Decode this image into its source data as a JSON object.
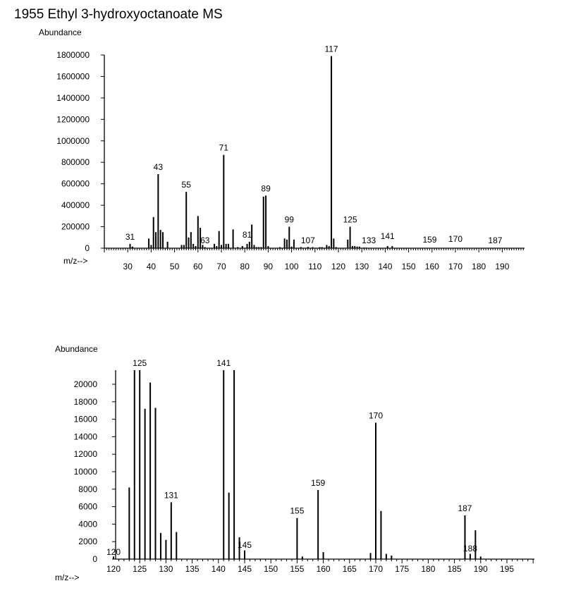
{
  "title": "1955 Ethyl 3-hydroxyoctanoate MS",
  "chart_data": [
    {
      "type": "bar",
      "name": "full-spectrum",
      "ylabel": "Abundance",
      "xlabel": "m/z-->",
      "xlim": [
        20,
        200
      ],
      "ylim": [
        0,
        1800000
      ],
      "x_ticks": [
        30,
        40,
        50,
        60,
        70,
        80,
        90,
        100,
        110,
        120,
        130,
        140,
        150,
        160,
        170,
        180,
        190
      ],
      "y_ticks": [
        0,
        200000,
        400000,
        600000,
        800000,
        1000000,
        1200000,
        1400000,
        1600000,
        1800000
      ],
      "peaks": [
        [
          31,
          40000
        ],
        [
          32,
          15000
        ],
        [
          39,
          90000
        ],
        [
          40,
          30000
        ],
        [
          41,
          290000
        ],
        [
          42,
          150000
        ],
        [
          43,
          690000
        ],
        [
          44,
          170000
        ],
        [
          45,
          150000
        ],
        [
          47,
          60000
        ],
        [
          53,
          30000
        ],
        [
          54,
          30000
        ],
        [
          55,
          525000
        ],
        [
          56,
          100000
        ],
        [
          57,
          150000
        ],
        [
          58,
          40000
        ],
        [
          59,
          20000
        ],
        [
          60,
          300000
        ],
        [
          61,
          190000
        ],
        [
          62,
          30000
        ],
        [
          63,
          10000
        ],
        [
          67,
          40000
        ],
        [
          68,
          20000
        ],
        [
          69,
          160000
        ],
        [
          70,
          30000
        ],
        [
          71,
          870000
        ],
        [
          72,
          40000
        ],
        [
          73,
          40000
        ],
        [
          75,
          175000
        ],
        [
          77,
          10000
        ],
        [
          79,
          20000
        ],
        [
          81,
          40000
        ],
        [
          82,
          60000
        ],
        [
          83,
          220000
        ],
        [
          84,
          30000
        ],
        [
          85,
          10000
        ],
        [
          86,
          10000
        ],
        [
          87,
          10000
        ],
        [
          88,
          480000
        ],
        [
          89,
          490000
        ],
        [
          90,
          20000
        ],
        [
          95,
          10000
        ],
        [
          97,
          90000
        ],
        [
          98,
          80000
        ],
        [
          99,
          200000
        ],
        [
          100,
          15000
        ],
        [
          101,
          80000
        ],
        [
          104,
          10000
        ],
        [
          107,
          12000
        ],
        [
          109,
          10000
        ],
        [
          112,
          10000
        ],
        [
          113,
          10000
        ],
        [
          115,
          30000
        ],
        [
          116,
          20000
        ],
        [
          117,
          1790000
        ],
        [
          118,
          90000
        ],
        [
          119,
          10000
        ],
        [
          124,
          80000
        ],
        [
          125,
          200000
        ],
        [
          126,
          20000
        ],
        [
          127,
          20000
        ],
        [
          128,
          15000
        ],
        [
          129,
          15000
        ],
        [
          131,
          5000
        ],
        [
          132,
          5000
        ],
        [
          141,
          20000
        ],
        [
          143,
          20000
        ]
      ],
      "labels": [
        {
          "mz": 31,
          "text": "31"
        },
        {
          "mz": 43,
          "text": "43"
        },
        {
          "mz": 55,
          "text": "55"
        },
        {
          "mz": 63,
          "text": "63"
        },
        {
          "mz": 71,
          "text": "71"
        },
        {
          "mz": 81,
          "text": "81"
        },
        {
          "mz": 89,
          "text": "89"
        },
        {
          "mz": 99,
          "text": "99"
        },
        {
          "mz": 107,
          "text": "107"
        },
        {
          "mz": 117,
          "text": "117"
        },
        {
          "mz": 125,
          "text": "125"
        },
        {
          "mz": 133,
          "text": "133"
        },
        {
          "mz": 141,
          "text": "141"
        },
        {
          "mz": 159,
          "text": "159"
        },
        {
          "mz": 170,
          "text": "170"
        },
        {
          "mz": 187,
          "text": "187"
        }
      ]
    },
    {
      "type": "bar",
      "name": "zoomed-spectrum",
      "ylabel": "Abundance",
      "xlabel": "m/z-->",
      "xlim": [
        119,
        200
      ],
      "ylim": [
        0,
        22000
      ],
      "x_ticks": [
        120,
        125,
        130,
        135,
        140,
        145,
        150,
        155,
        160,
        165,
        170,
        175,
        180,
        185,
        190,
        195
      ],
      "y_ticks": [
        0,
        2000,
        4000,
        6000,
        8000,
        10000,
        12000,
        14000,
        16000,
        18000,
        20000
      ],
      "peaks": [
        [
          120,
          300
        ],
        [
          123,
          8200
        ],
        [
          124,
          21800
        ],
        [
          125,
          21800
        ],
        [
          126,
          17200
        ],
        [
          127,
          20200
        ],
        [
          128,
          17300
        ],
        [
          129,
          3000
        ],
        [
          130,
          2200
        ],
        [
          131,
          6500
        ],
        [
          132,
          3100
        ],
        [
          141,
          21800
        ],
        [
          142,
          7600
        ],
        [
          143,
          21800
        ],
        [
          144,
          2500
        ],
        [
          145,
          1000
        ],
        [
          155,
          4700
        ],
        [
          156,
          300
        ],
        [
          159,
          7900
        ],
        [
          160,
          800
        ],
        [
          169,
          700
        ],
        [
          170,
          15600
        ],
        [
          171,
          5500
        ],
        [
          172,
          600
        ],
        [
          173,
          400
        ],
        [
          187,
          5000
        ],
        [
          188,
          600
        ],
        [
          189,
          3300
        ],
        [
          190,
          300
        ]
      ],
      "labels": [
        {
          "mz": 120,
          "text": "120"
        },
        {
          "mz": 125,
          "text": "125"
        },
        {
          "mz": 131,
          "text": "131"
        },
        {
          "mz": 141,
          "text": "141"
        },
        {
          "mz": 145,
          "text": "145"
        },
        {
          "mz": 155,
          "text": "155"
        },
        {
          "mz": 159,
          "text": "159"
        },
        {
          "mz": 170,
          "text": "170"
        },
        {
          "mz": 187,
          "text": "187"
        },
        {
          "mz": 188,
          "text": "188"
        }
      ]
    }
  ]
}
